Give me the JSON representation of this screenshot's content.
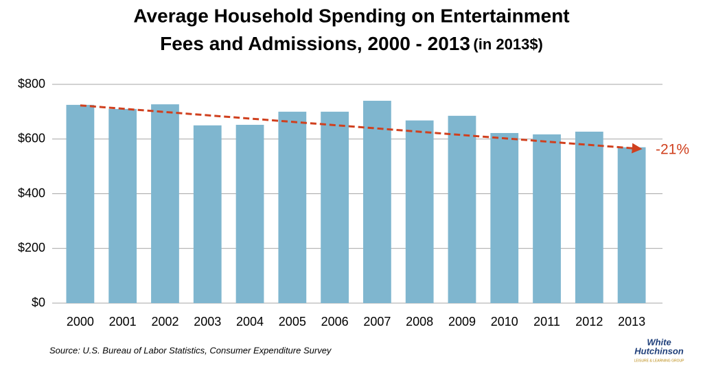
{
  "chart_data": {
    "type": "bar",
    "title": [
      "Average Household Spending on Entertainment",
      "Fees and Admissions, 2000 - 2013"
    ],
    "title_suffix": "(in 2013$)",
    "categories": [
      "2000",
      "2001",
      "2002",
      "2003",
      "2004",
      "2005",
      "2006",
      "2007",
      "2008",
      "2009",
      "2010",
      "2011",
      "2012",
      "2013"
    ],
    "values": [
      725,
      710,
      727,
      650,
      652,
      700,
      700,
      740,
      668,
      685,
      622,
      617,
      627,
      570
    ],
    "color": "#7fb6cf",
    "ylim": [
      0,
      800
    ],
    "yticks": [
      {
        "value": 0,
        "label": "$0"
      },
      {
        "value": 200,
        "label": "$200"
      },
      {
        "value": 400,
        "label": "$400"
      },
      {
        "value": 600,
        "label": "$600"
      },
      {
        "value": 800,
        "label": "$800"
      }
    ],
    "grid": true,
    "trend": {
      "start": 723,
      "end": 565,
      "label": "-21%",
      "color": "#d0401e"
    },
    "source": "Source: U.S. Bureau of Labor Statistics, Consumer Expenditure Survey",
    "logo": [
      "White",
      "Hutchinson",
      "LEISURE & LEARNING GROUP"
    ]
  }
}
